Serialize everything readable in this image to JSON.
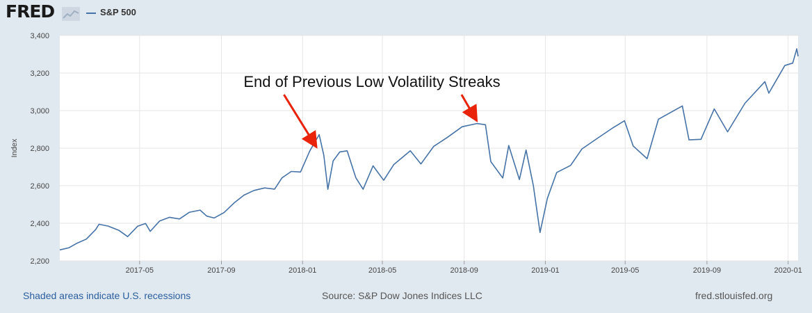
{
  "header": {
    "logo_text": "FRED",
    "legend_label": "S&P 500",
    "series_color": "#4572a7"
  },
  "footer": {
    "recession_note": "Shaded areas indicate U.S. recessions",
    "source": "Source: S&P Dow Jones Indices LLC",
    "site": "fred.stlouisfed.org"
  },
  "chart_data": {
    "type": "line",
    "title": "",
    "xlabel": "",
    "ylabel": "Index",
    "ylim": [
      2200,
      3400
    ],
    "xlim": [
      "2017-01-01",
      "2020-01-16"
    ],
    "grid": true,
    "legend_placement": "top-left",
    "yticks": [
      2200,
      2400,
      2600,
      2800,
      3000,
      3200,
      3400
    ],
    "ytick_labels": [
      "2,200",
      "2,400",
      "2,600",
      "2,800",
      "3,000",
      "3,200",
      "3,400"
    ],
    "xticks": [
      "2017-05-01",
      "2017-09-01",
      "2018-01-01",
      "2018-05-01",
      "2018-09-01",
      "2019-01-01",
      "2019-05-01",
      "2019-09-01",
      "2020-01-01"
    ],
    "xtick_labels": [
      "2017-05",
      "2017-09",
      "2018-01",
      "2018-05",
      "2018-09",
      "2019-01",
      "2019-05",
      "2019-09",
      "2020-01"
    ],
    "series": [
      {
        "name": "S&P 500",
        "color": "#4572a7",
        "points": [
          [
            "2017-01-01",
            2258
          ],
          [
            "2017-01-15",
            2270
          ],
          [
            "2017-01-27",
            2294
          ],
          [
            "2017-02-10",
            2316
          ],
          [
            "2017-02-24",
            2367
          ],
          [
            "2017-03-01",
            2395
          ],
          [
            "2017-03-15",
            2385
          ],
          [
            "2017-03-31",
            2362
          ],
          [
            "2017-04-13",
            2329
          ],
          [
            "2017-04-28",
            2384
          ],
          [
            "2017-05-10",
            2399
          ],
          [
            "2017-05-17",
            2357
          ],
          [
            "2017-05-31",
            2412
          ],
          [
            "2017-06-15",
            2432
          ],
          [
            "2017-06-30",
            2423
          ],
          [
            "2017-07-15",
            2459
          ],
          [
            "2017-07-31",
            2470
          ],
          [
            "2017-08-10",
            2438
          ],
          [
            "2017-08-21",
            2428
          ],
          [
            "2017-09-05",
            2457
          ],
          [
            "2017-09-20",
            2508
          ],
          [
            "2017-10-05",
            2550
          ],
          [
            "2017-10-20",
            2575
          ],
          [
            "2017-11-05",
            2588
          ],
          [
            "2017-11-20",
            2582
          ],
          [
            "2017-12-01",
            2642
          ],
          [
            "2017-12-15",
            2676
          ],
          [
            "2017-12-29",
            2673
          ],
          [
            "2018-01-12",
            2786
          ],
          [
            "2018-01-26",
            2872
          ],
          [
            "2018-02-02",
            2762
          ],
          [
            "2018-02-08",
            2581
          ],
          [
            "2018-02-16",
            2732
          ],
          [
            "2018-02-26",
            2780
          ],
          [
            "2018-03-09",
            2786
          ],
          [
            "2018-03-22",
            2643
          ],
          [
            "2018-04-02",
            2581
          ],
          [
            "2018-04-17",
            2706
          ],
          [
            "2018-05-03",
            2629
          ],
          [
            "2018-05-18",
            2712
          ],
          [
            "2018-06-12",
            2786
          ],
          [
            "2018-06-28",
            2716
          ],
          [
            "2018-07-17",
            2809
          ],
          [
            "2018-08-07",
            2858
          ],
          [
            "2018-08-29",
            2914
          ],
          [
            "2018-09-20",
            2931
          ],
          [
            "2018-10-03",
            2925
          ],
          [
            "2018-10-11",
            2728
          ],
          [
            "2018-10-29",
            2641
          ],
          [
            "2018-11-07",
            2814
          ],
          [
            "2018-11-23",
            2633
          ],
          [
            "2018-12-03",
            2790
          ],
          [
            "2018-12-14",
            2600
          ],
          [
            "2018-12-24",
            2351
          ],
          [
            "2019-01-04",
            2532
          ],
          [
            "2019-01-18",
            2670
          ],
          [
            "2019-02-08",
            2708
          ],
          [
            "2019-02-25",
            2796
          ],
          [
            "2019-03-21",
            2854
          ],
          [
            "2019-04-12",
            2907
          ],
          [
            "2019-04-30",
            2946
          ],
          [
            "2019-05-13",
            2812
          ],
          [
            "2019-06-03",
            2744
          ],
          [
            "2019-06-20",
            2954
          ],
          [
            "2019-07-26",
            3025
          ],
          [
            "2019-08-05",
            2844
          ],
          [
            "2019-08-23",
            2847
          ],
          [
            "2019-09-12",
            3009
          ],
          [
            "2019-10-02",
            2887
          ],
          [
            "2019-10-28",
            3039
          ],
          [
            "2019-11-27",
            3154
          ],
          [
            "2019-12-03",
            3093
          ],
          [
            "2019-12-27",
            3240
          ],
          [
            "2020-01-08",
            3253
          ],
          [
            "2020-01-14",
            3329
          ],
          [
            "2020-01-16",
            3289
          ]
        ]
      }
    ],
    "annotations": [
      {
        "text": "End of Previous Low Volatility Streaks",
        "arrows": [
          {
            "from": [
              "2017-12-04",
              3085
            ],
            "to": [
              "2018-01-22",
              2805
            ]
          },
          {
            "from": [
              "2018-08-28",
              3085
            ],
            "to": [
              "2018-09-20",
              2945
            ]
          }
        ],
        "arrow_color": "#e8230a"
      }
    ]
  }
}
